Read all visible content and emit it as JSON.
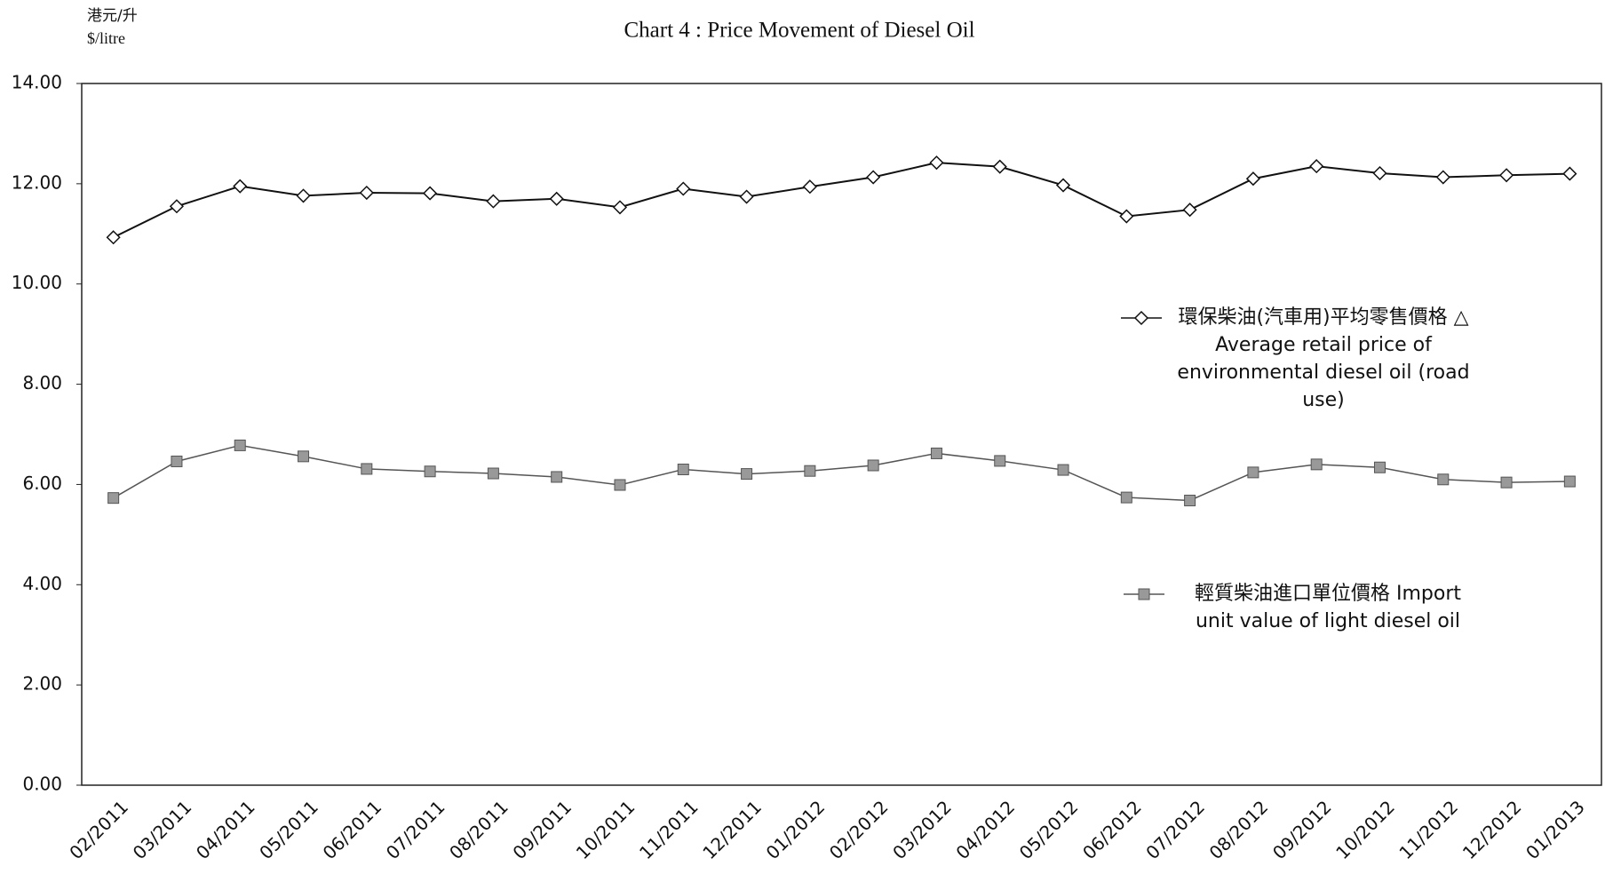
{
  "chart_data": {
    "type": "line",
    "title": "Chart 4 : Price Movement of Diesel Oil",
    "ylabel": [
      "港元/升",
      "$/litre"
    ],
    "categories": [
      "02/2011",
      "03/2011",
      "04/2011",
      "05/2011",
      "06/2011",
      "07/2011",
      "08/2011",
      "09/2011",
      "10/2011",
      "11/2011",
      "12/2011",
      "01/2012",
      "02/2012",
      "03/2012",
      "04/2012",
      "05/2012",
      "06/2012",
      "07/2012",
      "08/2012",
      "09/2012",
      "10/2012",
      "11/2012",
      "12/2012",
      "01/2013"
    ],
    "series": [
      {
        "name": "環保柴油(汽車用)平均零售價格 △ Average retail price of environmental diesel oil (road use)",
        "color": "#111111",
        "marker": "diamond",
        "values": [
          10.93,
          11.55,
          11.95,
          11.76,
          11.82,
          11.81,
          11.65,
          11.7,
          11.53,
          11.9,
          11.74,
          11.94,
          12.13,
          12.42,
          12.34,
          11.97,
          11.35,
          11.48,
          12.1,
          12.35,
          12.21,
          12.13,
          12.17,
          12.2
        ]
      },
      {
        "name": "輕質柴油進口單位價格 Import unit value of light diesel oil",
        "color": "#555555",
        "marker": "square",
        "values": [
          5.73,
          6.46,
          6.78,
          6.56,
          6.31,
          6.26,
          6.22,
          6.15,
          5.99,
          6.3,
          6.21,
          6.27,
          6.38,
          6.62,
          6.47,
          6.29,
          5.74,
          5.68,
          6.24,
          6.4,
          6.34,
          6.1,
          6.04,
          6.06
        ]
      }
    ],
    "ylim": [
      0,
      14
    ],
    "yticks": [
      {
        "value": 0,
        "label": "0.00"
      },
      {
        "value": 2,
        "label": "2.00"
      },
      {
        "value": 4,
        "label": "4.00"
      },
      {
        "value": 6,
        "label": "6.00"
      },
      {
        "value": 8,
        "label": "8.00"
      },
      {
        "value": 10,
        "label": "10.00"
      },
      {
        "value": 12,
        "label": "12.00"
      },
      {
        "value": 14,
        "label": "14.00"
      }
    ],
    "grid": false
  }
}
